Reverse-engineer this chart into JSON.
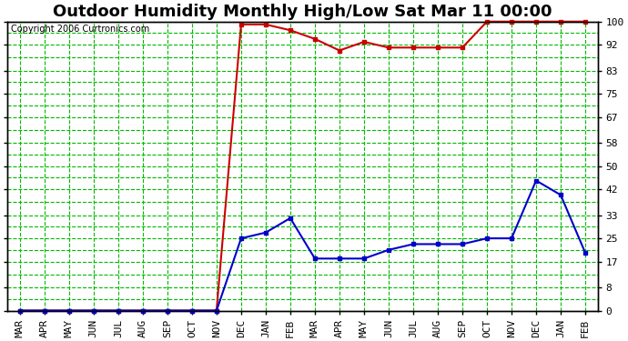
{
  "title": "Outdoor Humidity Monthly High/Low Sat Mar 11 00:00",
  "copyright": "Copyright 2006 Curtronics.com",
  "x_labels": [
    "MAR",
    "APR",
    "MAY",
    "JUN",
    "JUL",
    "AUG",
    "SEP",
    "OCT",
    "NOV",
    "DEC",
    "JAN",
    "FEB",
    "MAR",
    "APR",
    "MAY",
    "JUN",
    "JUL",
    "AUG",
    "SEP",
    "OCT",
    "NOV",
    "DEC",
    "JAN",
    "FEB"
  ],
  "high_values": [
    0,
    0,
    0,
    0,
    0,
    0,
    0,
    0,
    0,
    99,
    99,
    97,
    94,
    90,
    93,
    91,
    91,
    91,
    91,
    100,
    100,
    100,
    100,
    100
  ],
  "low_values": [
    0,
    0,
    0,
    0,
    0,
    0,
    0,
    0,
    0,
    25,
    27,
    32,
    18,
    18,
    18,
    21,
    23,
    23,
    23,
    25,
    25,
    45,
    40,
    20
  ],
  "high_color": "#cc0000",
  "low_color": "#0000cc",
  "bg_color": "#ffffff",
  "grid_color": "#00bb00",
  "yticks": [
    0,
    8,
    17,
    25,
    33,
    42,
    50,
    58,
    67,
    75,
    83,
    92,
    100
  ],
  "ylim": [
    0,
    100
  ],
  "marker": "s",
  "marker_size": 3,
  "linewidth": 1.5,
  "title_fontsize": 13,
  "tick_fontsize": 8,
  "copyright_fontsize": 7
}
